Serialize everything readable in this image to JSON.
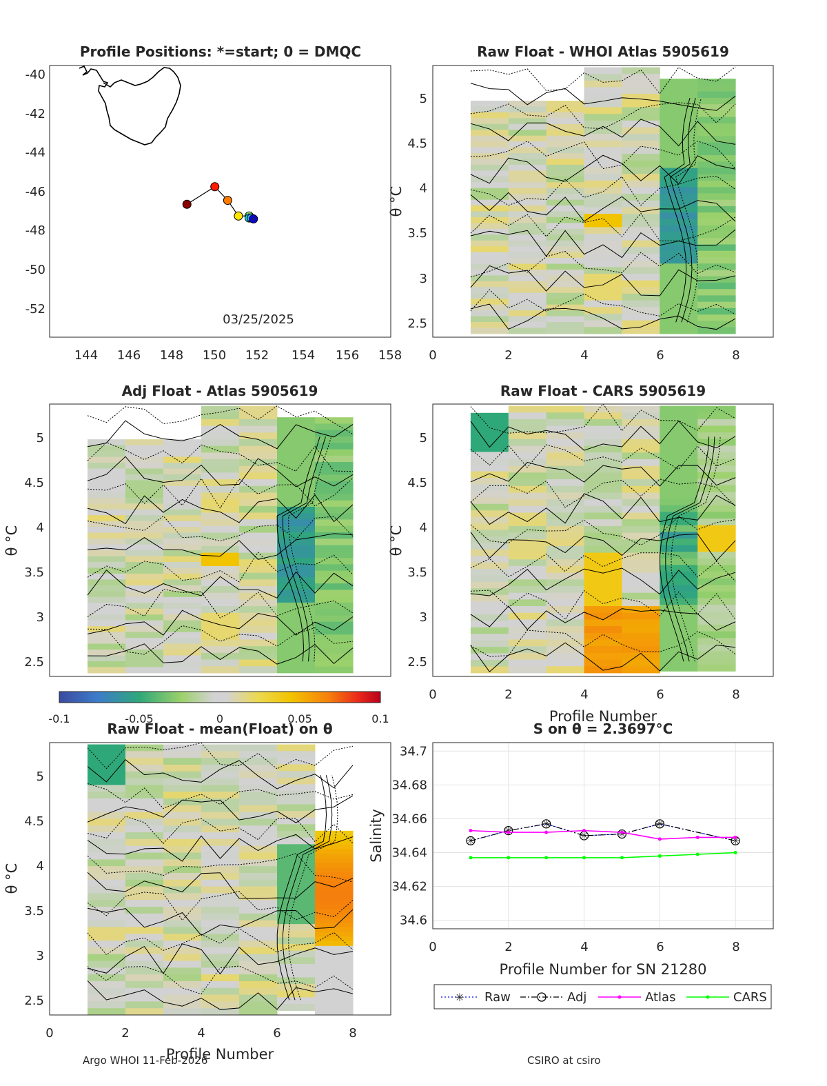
{
  "colors": {
    "raw": "#0000ff",
    "adj": "#000000",
    "atlas": "#ff00ff",
    "cars": "#00ff00"
  },
  "map": {
    "title": "Profile Positions: *=start; 0 = DMQC",
    "date": "03/25/2025",
    "xticks": [
      "144",
      "146",
      "148",
      "150",
      "152",
      "154",
      "156",
      "158"
    ],
    "yticks": [
      "-40",
      "-42",
      "-44",
      "-46",
      "-48",
      "-50",
      "-52"
    ],
    "xlim": [
      142.5,
      158.4
    ],
    "ylim": [
      -53.5,
      -39.6
    ],
    "track": [
      {
        "lon": 148.9,
        "lat": -46.7,
        "color": "#8b0000"
      },
      {
        "lon": 150.2,
        "lat": -45.8,
        "color": "#ff1a00"
      },
      {
        "lon": 150.8,
        "lat": -46.5,
        "color": "#ff7a00"
      },
      {
        "lon": 151.3,
        "lat": -47.3,
        "color": "#ffe600"
      },
      {
        "lon": 151.8,
        "lat": -47.3,
        "color": "#80ff80"
      },
      {
        "lon": 151.8,
        "lat": -47.4,
        "color": "#00e5e5"
      },
      {
        "lon": 151.9,
        "lat": -47.4,
        "color": "#4aa3ff"
      },
      {
        "lon": 152.0,
        "lat": -47.45,
        "color": "#0000ff"
      }
    ]
  },
  "panels": {
    "whoi": {
      "title": "Raw Float - WHOI Atlas  5905619",
      "ylabel": "θ °C",
      "yticks": [
        "2.5",
        "3",
        "3.5",
        "4",
        "4.5",
        "5"
      ],
      "xticks": [
        "0",
        "2",
        "4",
        "6",
        "8"
      ]
    },
    "adj": {
      "title": "Adj Float - Atlas  5905619",
      "ylabel": "θ °C",
      "yticks": [
        "2.5",
        "3",
        "3.5",
        "4",
        "4.5",
        "5"
      ],
      "xticks": [
        "0",
        "2",
        "4",
        "6",
        "8"
      ]
    },
    "cars": {
      "title": "Raw Float - CARS  5905619",
      "ylabel": "θ °C",
      "xlabel": "Profile Number",
      "yticks": [
        "2.5",
        "3",
        "3.5",
        "4",
        "4.5",
        "5"
      ],
      "xticks": [
        "0",
        "2",
        "4",
        "6",
        "8"
      ]
    },
    "mean": {
      "title": "Raw Float - mean(Float) on θ",
      "ylabel": "θ °C",
      "xlabel": "Profile Number",
      "yticks": [
        "2.5",
        "3",
        "3.5",
        "4",
        "4.5",
        "5"
      ],
      "xticks": [
        "0",
        "2",
        "4",
        "6",
        "8"
      ]
    }
  },
  "colorbar": {
    "ticks": [
      "-0.1",
      "-0.05",
      "0",
      "0.05",
      "0.1"
    ],
    "range": [
      -0.1,
      0.1
    ]
  },
  "chart_data": {
    "type": "line",
    "title": "S on θ = 2.3697°C",
    "xlabel": "Profile Number for SN 21280",
    "ylabel": "Salinity",
    "xlim": [
      0,
      9
    ],
    "ylim": [
      34.595,
      34.705
    ],
    "xticks": [
      "0",
      "2",
      "4",
      "6",
      "8"
    ],
    "yticks": [
      "34.6",
      "34.62",
      "34.64",
      "34.66",
      "34.68",
      "34.7"
    ],
    "x": [
      1,
      2,
      3,
      4,
      5,
      6,
      7,
      8
    ],
    "series": [
      {
        "name": "Raw",
        "values": [
          34.647,
          34.653,
          34.657,
          34.65,
          34.651,
          34.657,
          null,
          34.647
        ]
      },
      {
        "name": "Adj",
        "values": [
          34.647,
          34.653,
          34.657,
          34.65,
          34.651,
          34.657,
          null,
          34.647
        ]
      },
      {
        "name": "Atlas",
        "values": [
          34.653,
          34.652,
          34.652,
          34.653,
          34.652,
          34.648,
          34.649,
          34.649
        ]
      },
      {
        "name": "CARS",
        "values": [
          34.637,
          34.637,
          34.637,
          34.637,
          34.637,
          34.638,
          34.639,
          34.64
        ]
      }
    ],
    "legend": [
      "Raw",
      "Adj",
      "Atlas",
      "CARS"
    ]
  },
  "footer": {
    "left": "Argo WHOI 11-Feb-2026",
    "right": "CSIRO at csiro"
  }
}
